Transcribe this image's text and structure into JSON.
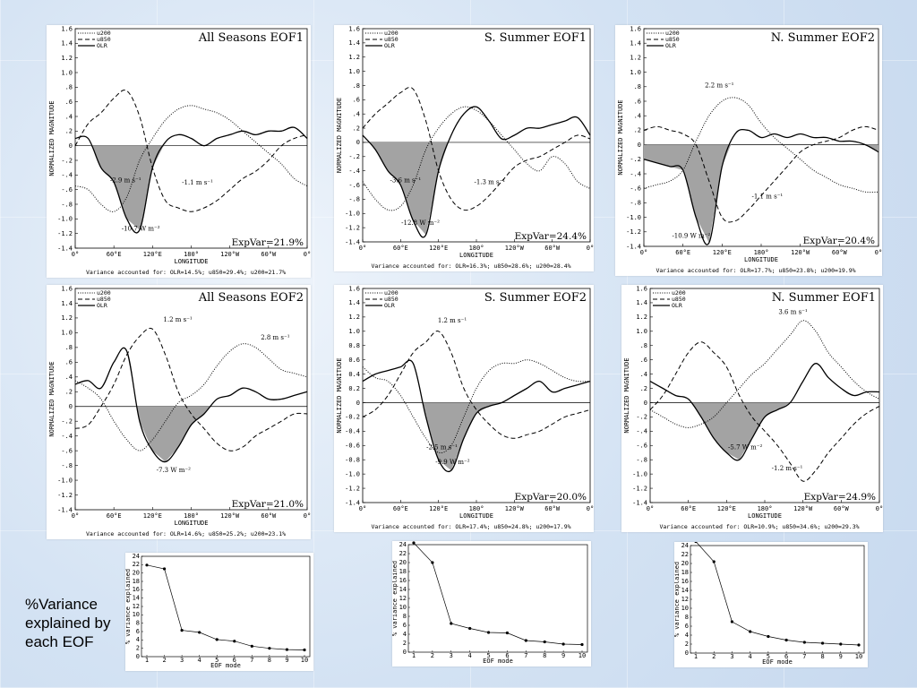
{
  "caption": {
    "line1": "%Variance",
    "line2": "explained by",
    "line3": "each EOF"
  },
  "legend_names": [
    "u200",
    "u850",
    "OLR"
  ],
  "x_ticks": [
    "0°",
    "60°E",
    "120°E",
    "180°",
    "120°W",
    "60°W",
    "0°"
  ],
  "y_ticks": [
    "1.6",
    "1.4",
    "1.2",
    "1.0",
    ".8",
    ".6",
    ".4",
    ".2",
    "0",
    "-.2",
    "-.4",
    "-.6",
    "-.8",
    "-1.0",
    "-1.2",
    "-1.4"
  ],
  "y_ticks_b": [
    "1.6",
    "1.4",
    "1.2",
    "1.0",
    "0.8",
    "0.6",
    "0.4",
    "0.2",
    "0",
    "-0.2",
    "-0.4",
    "-0.6",
    "-0.8",
    "-1.0",
    "-1.2",
    "-1.4"
  ],
  "xlabel": "LONGITUDE",
  "ylabel": "NORMALIZED MAGNITUDE",
  "chart_data": [
    {
      "type": "line",
      "title": "All Seasons EOF1",
      "expvar": "ExpVar=21.9%",
      "variance": "Variance accounted for: OLR=14.5%; u850=29.4%; u200=21.7%",
      "ylim": [
        -1.4,
        1.6
      ],
      "x": [
        0,
        20,
        40,
        60,
        80,
        100,
        120,
        140,
        160,
        180,
        200,
        220,
        240,
        260,
        280,
        300,
        320,
        340,
        360
      ],
      "series": [
        {
          "name": "u200",
          "values": [
            -0.55,
            -0.6,
            -0.8,
            -0.9,
            -0.7,
            -0.2,
            0.1,
            0.35,
            0.5,
            0.55,
            0.5,
            0.45,
            0.35,
            0.2,
            0.05,
            -0.1,
            -0.25,
            -0.45,
            -0.55
          ]
        },
        {
          "name": "u850",
          "values": [
            0.0,
            0.3,
            0.45,
            0.65,
            0.75,
            0.4,
            -0.3,
            -0.75,
            -0.85,
            -0.9,
            -0.85,
            -0.75,
            -0.6,
            -0.45,
            -0.35,
            -0.2,
            0.0,
            0.1,
            0.15
          ]
        },
        {
          "name": "OLR",
          "values": [
            0.1,
            0.1,
            -0.3,
            -0.5,
            -1.0,
            -1.15,
            -0.3,
            0.05,
            0.15,
            0.1,
            0.0,
            0.1,
            0.15,
            0.2,
            0.15,
            0.2,
            0.2,
            0.25,
            0.1
          ]
        }
      ],
      "annotations": [
        "-2.9 m s⁻¹",
        "-1.1 m s⁻¹",
        "-10.7 W m⁻²"
      ]
    },
    {
      "type": "line",
      "title": "S. Summer EOF1",
      "expvar": "ExpVar=24.4%",
      "variance": "Variance accounted for: OLR=16.3%; u850=28.6%; u200=28.4%",
      "ylim": [
        -1.4,
        1.6
      ],
      "x": [
        0,
        20,
        40,
        60,
        80,
        100,
        120,
        140,
        160,
        180,
        200,
        220,
        240,
        260,
        280,
        300,
        320,
        340,
        360
      ],
      "series": [
        {
          "name": "u200",
          "values": [
            -0.55,
            -0.8,
            -0.95,
            -0.9,
            -0.6,
            -0.1,
            0.2,
            0.4,
            0.5,
            0.45,
            0.3,
            0.1,
            -0.1,
            -0.3,
            -0.4,
            -0.2,
            -0.3,
            -0.55,
            -0.65
          ]
        },
        {
          "name": "u850",
          "values": [
            0.2,
            0.4,
            0.55,
            0.7,
            0.75,
            0.3,
            -0.4,
            -0.8,
            -0.95,
            -0.9,
            -0.75,
            -0.55,
            -0.35,
            -0.25,
            -0.2,
            -0.1,
            0.0,
            0.1,
            0.05
          ]
        },
        {
          "name": "OLR",
          "values": [
            0.1,
            -0.1,
            -0.4,
            -0.6,
            -1.1,
            -1.3,
            -0.4,
            0.1,
            0.4,
            0.5,
            0.3,
            0.05,
            0.1,
            0.2,
            0.2,
            0.25,
            0.3,
            0.35,
            0.1
          ]
        }
      ],
      "annotations": [
        "-3.6 m s⁻¹",
        "-1.3 m s⁻¹",
        "-12.8 W m⁻²"
      ]
    },
    {
      "type": "line",
      "title": "N. Summer EOF2",
      "expvar": "ExpVar=20.4%",
      "variance": "Variance accounted for: OLR=17.7%; u850=23.8%; u200=19.9%",
      "ylim": [
        -1.4,
        1.6
      ],
      "x": [
        0,
        20,
        40,
        60,
        80,
        100,
        120,
        140,
        160,
        180,
        200,
        220,
        240,
        260,
        280,
        300,
        320,
        340,
        360
      ],
      "series": [
        {
          "name": "u200",
          "values": [
            -0.6,
            -0.55,
            -0.5,
            -0.35,
            0.05,
            0.4,
            0.6,
            0.65,
            0.55,
            0.3,
            0.1,
            -0.05,
            -0.2,
            -0.35,
            -0.45,
            -0.55,
            -0.6,
            -0.65,
            -0.65
          ]
        },
        {
          "name": "u850",
          "values": [
            0.2,
            0.25,
            0.2,
            0.15,
            0.0,
            -0.5,
            -1.0,
            -1.05,
            -0.9,
            -0.7,
            -0.5,
            -0.3,
            -0.1,
            0.0,
            0.05,
            0.1,
            0.2,
            0.25,
            0.2
          ]
        },
        {
          "name": "OLR",
          "values": [
            -0.2,
            -0.25,
            -0.3,
            -0.35,
            -1.0,
            -1.35,
            -0.3,
            0.15,
            0.2,
            0.1,
            0.15,
            0.1,
            0.15,
            0.1,
            0.1,
            0.05,
            0.05,
            0.0,
            -0.1
          ]
        }
      ],
      "annotations": [
        "2.2 m s⁻¹",
        "-1.1 m s⁻¹",
        "-10.9 W m⁻²"
      ]
    },
    {
      "type": "line",
      "title": "All Seasons EOF2",
      "expvar": "ExpVar=21.0%",
      "variance": "Variance accounted for: OLR=14.6%; u850=25.2%; u200=23.1%",
      "ylim": [
        -1.4,
        1.6
      ],
      "x": [
        0,
        20,
        40,
        60,
        80,
        100,
        120,
        140,
        160,
        180,
        200,
        220,
        240,
        260,
        280,
        300,
        320,
        340,
        360
      ],
      "series": [
        {
          "name": "u200",
          "values": [
            0.35,
            0.25,
            0.1,
            -0.2,
            -0.45,
            -0.6,
            -0.45,
            -0.2,
            0.05,
            0.15,
            0.3,
            0.55,
            0.75,
            0.85,
            0.8,
            0.65,
            0.5,
            0.45,
            0.4
          ]
        },
        {
          "name": "u850",
          "values": [
            -0.3,
            -0.25,
            0.0,
            0.3,
            0.7,
            0.95,
            1.05,
            0.7,
            0.2,
            -0.1,
            -0.3,
            -0.5,
            -0.6,
            -0.55,
            -0.4,
            -0.3,
            -0.2,
            -0.1,
            -0.1
          ]
        },
        {
          "name": "OLR",
          "values": [
            0.3,
            0.35,
            0.25,
            0.6,
            0.75,
            -0.2,
            -0.6,
            -0.75,
            -0.55,
            -0.25,
            -0.1,
            0.1,
            0.15,
            0.25,
            0.2,
            0.1,
            0.1,
            0.15,
            0.2
          ]
        }
      ],
      "annotations": [
        "1.2 m s⁻¹",
        "2.8 m s⁻¹",
        "-7.3 W m⁻²"
      ]
    },
    {
      "type": "line",
      "title": "S. Summer EOF2",
      "expvar": "ExpVar=20.0%",
      "variance": "Variance accounted for: OLR=17.4%; u850=24.8%; u200=17.9%",
      "ylim": [
        -1.4,
        1.6
      ],
      "x": [
        0,
        20,
        40,
        60,
        80,
        100,
        120,
        140,
        160,
        180,
        200,
        220,
        240,
        260,
        280,
        300,
        320,
        340,
        360
      ],
      "series": [
        {
          "name": "u200",
          "values": [
            0.5,
            0.35,
            0.3,
            0.1,
            -0.2,
            -0.5,
            -0.7,
            -0.6,
            -0.2,
            0.2,
            0.45,
            0.55,
            0.55,
            0.6,
            0.55,
            0.45,
            0.35,
            0.3,
            0.3
          ]
        },
        {
          "name": "u850",
          "values": [
            -0.2,
            -0.1,
            0.1,
            0.4,
            0.7,
            0.85,
            1.0,
            0.7,
            0.2,
            -0.1,
            -0.3,
            -0.45,
            -0.5,
            -0.45,
            -0.4,
            -0.3,
            -0.2,
            -0.15,
            -0.1
          ]
        },
        {
          "name": "OLR",
          "values": [
            0.3,
            0.4,
            0.45,
            0.5,
            0.55,
            -0.2,
            -0.8,
            -0.95,
            -0.5,
            -0.15,
            -0.05,
            0.0,
            0.1,
            0.2,
            0.3,
            0.15,
            0.2,
            0.25,
            0.3
          ]
        }
      ],
      "annotations": [
        "1.2 m s⁻¹",
        "-2.5 m s⁻¹",
        "-9.9 W m⁻²"
      ]
    },
    {
      "type": "line",
      "title": "N. Summer EOF1",
      "expvar": "ExpVar=24.9%",
      "variance": "Variance accounted for: OLR=10.9%; u850=34.6%; u200=29.3%",
      "ylim": [
        -1.4,
        1.6
      ],
      "x": [
        0,
        20,
        40,
        60,
        80,
        100,
        120,
        140,
        160,
        180,
        200,
        220,
        240,
        260,
        280,
        300,
        320,
        340,
        360
      ],
      "series": [
        {
          "name": "u200",
          "values": [
            -0.1,
            -0.2,
            -0.3,
            -0.35,
            -0.3,
            -0.2,
            0.0,
            0.2,
            0.4,
            0.55,
            0.75,
            0.95,
            1.15,
            1.0,
            0.7,
            0.5,
            0.3,
            0.15,
            0.05
          ]
        },
        {
          "name": "u850",
          "values": [
            -0.1,
            0.1,
            0.4,
            0.7,
            0.85,
            0.7,
            0.5,
            0.1,
            -0.2,
            -0.4,
            -0.6,
            -0.85,
            -1.1,
            -0.95,
            -0.7,
            -0.5,
            -0.3,
            -0.15,
            -0.05
          ]
        },
        {
          "name": "OLR",
          "values": [
            0.3,
            0.2,
            0.1,
            0.05,
            -0.2,
            -0.5,
            -0.7,
            -0.8,
            -0.5,
            -0.2,
            -0.1,
            0.0,
            0.3,
            0.55,
            0.35,
            0.2,
            0.1,
            0.15,
            0.15
          ]
        }
      ],
      "annotations": [
        "3.6 m s⁻¹",
        "-5.7 W m⁻²",
        "-1.2 m s⁻¹"
      ]
    },
    {
      "type": "line",
      "xlabel": "EOF mode",
      "ylabel": "% variance explained",
      "x": [
        1,
        2,
        3,
        4,
        5,
        6,
        7,
        8,
        9,
        10
      ],
      "ylim": [
        0,
        24
      ],
      "series": [
        {
          "values": [
            21.9,
            21.0,
            6.3,
            5.8,
            4.1,
            3.7,
            2.5,
            2.0,
            1.7,
            1.6
          ]
        }
      ]
    },
    {
      "type": "line",
      "xlabel": "EOF mode",
      "ylabel": "% variance explained",
      "x": [
        1,
        2,
        3,
        4,
        5,
        6,
        7,
        8,
        9,
        10
      ],
      "ylim": [
        0,
        24
      ],
      "series": [
        {
          "values": [
            24.4,
            20.0,
            6.4,
            5.3,
            4.4,
            4.3,
            2.6,
            2.3,
            1.8,
            1.7
          ]
        }
      ]
    },
    {
      "type": "line",
      "xlabel": "EOF mode",
      "ylabel": "% variance explained",
      "x": [
        1,
        2,
        3,
        4,
        5,
        6,
        7,
        8,
        9,
        10
      ],
      "ylim": [
        0,
        24
      ],
      "series": [
        {
          "values": [
            24.9,
            20.4,
            7.0,
            4.8,
            3.7,
            2.9,
            2.4,
            2.2,
            2.0,
            1.8
          ]
        }
      ]
    }
  ]
}
